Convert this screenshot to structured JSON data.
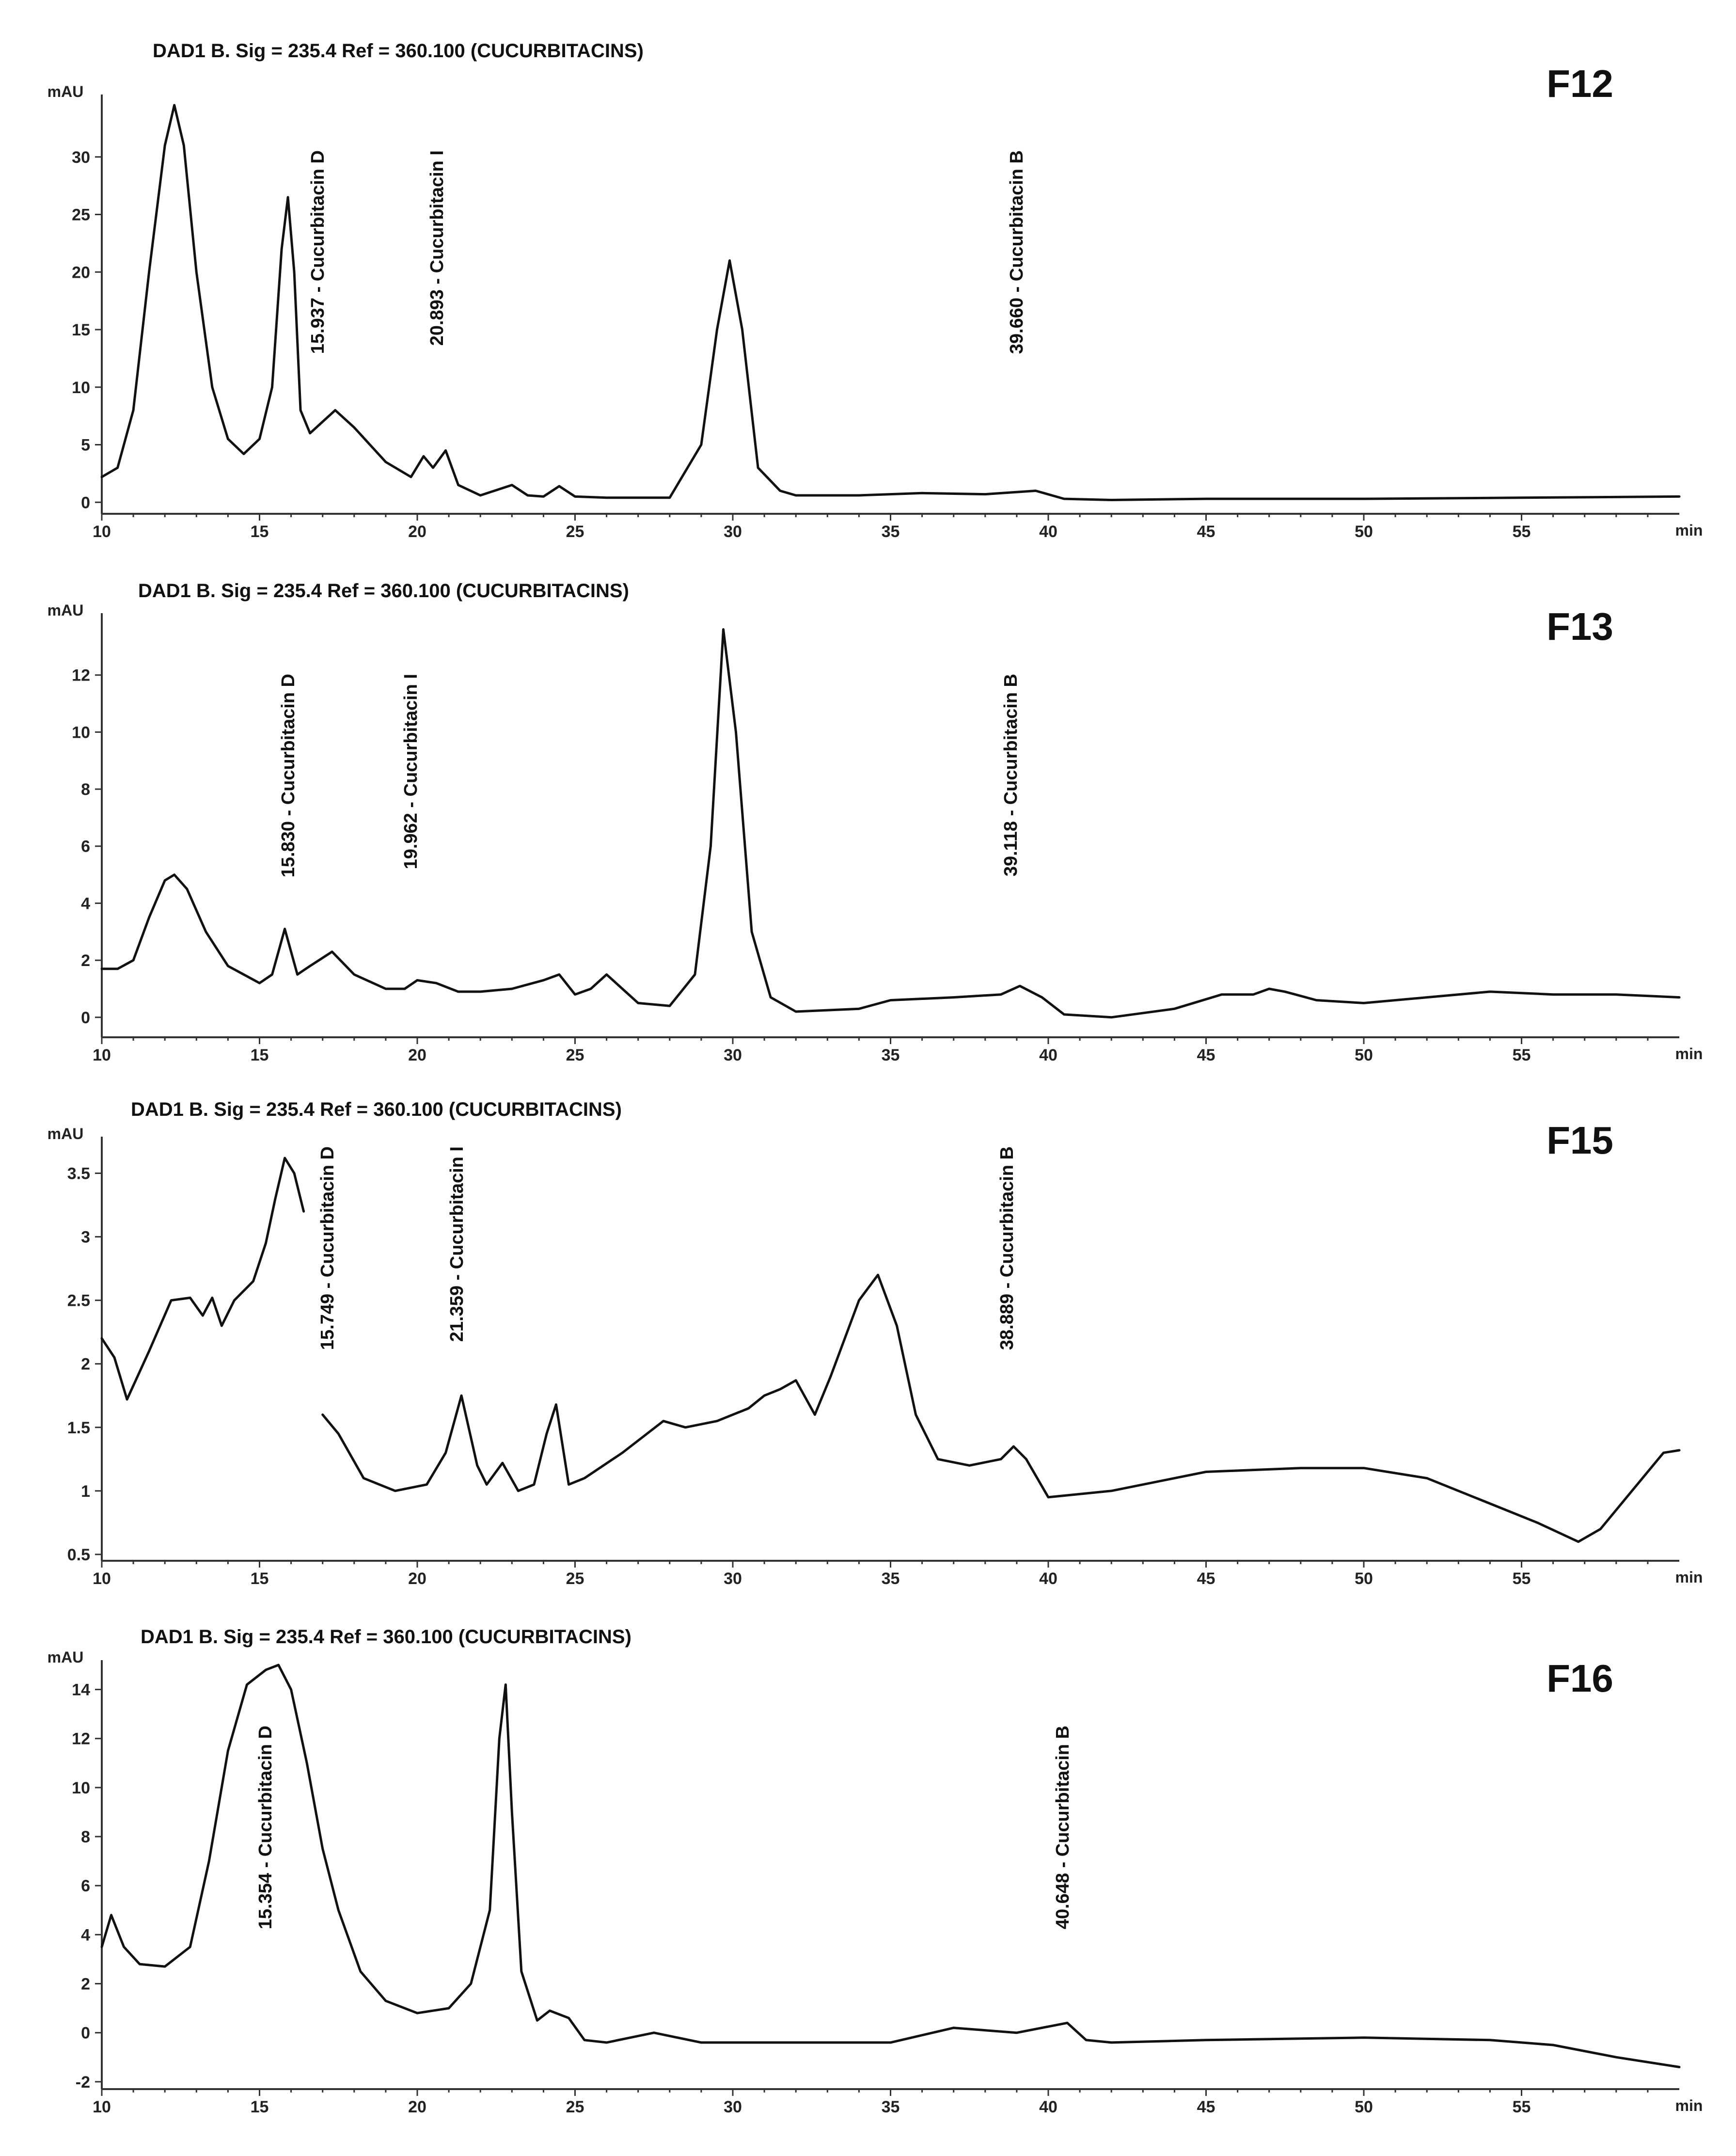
{
  "chart_data": [
    {
      "type": "line",
      "panel": "F12",
      "header": "DAD1 B. Sig = 235.4   Ref = 360.100  (CUCURBITACINS)",
      "ylabel": "mAU",
      "xlabel": "min",
      "xlim": [
        10,
        60
      ],
      "ylim": [
        -1,
        35
      ],
      "x_ticks": [
        10,
        15,
        20,
        25,
        30,
        35,
        40,
        45,
        50,
        55
      ],
      "y_ticks": [
        0,
        5,
        10,
        15,
        20,
        25,
        30
      ],
      "x_tick_labels": [
        "10",
        "15",
        "20",
        "25",
        "30",
        "35",
        "40",
        "45",
        "50",
        "55"
      ],
      "y_tick_labels": [
        "0",
        "5",
        "10",
        "15",
        "20",
        "25",
        "30"
      ],
      "x": [
        10,
        10.5,
        11,
        11.5,
        12,
        12.3,
        12.6,
        13,
        13.5,
        14,
        14.5,
        15,
        15.4,
        15.7,
        15.9,
        16.1,
        16.3,
        16.6,
        17,
        17.4,
        18,
        19,
        19.8,
        20.2,
        20.5,
        20.9,
        21.3,
        22,
        23,
        23.5,
        24,
        24.5,
        25,
        26,
        28,
        29,
        29.5,
        29.9,
        30.3,
        30.8,
        31.5,
        32,
        34,
        36,
        38,
        39.6,
        40.5,
        42,
        45,
        50,
        55,
        60
      ],
      "y": [
        2.2,
        3,
        8,
        20,
        31,
        34.5,
        31,
        20,
        10,
        5.5,
        4.2,
        5.5,
        10,
        22,
        26.5,
        20,
        8,
        6,
        7,
        8,
        6.5,
        3.5,
        2.2,
        4,
        3,
        4.5,
        1.5,
        0.6,
        1.5,
        0.6,
        0.5,
        1.4,
        0.5,
        0.4,
        0.4,
        5,
        15,
        21,
        15,
        3,
        1,
        0.6,
        0.6,
        0.8,
        0.7,
        1.0,
        0.3,
        0.2,
        0.3,
        0.3,
        0.4,
        0.5
      ],
      "label": "F12",
      "peaks": [
        {
          "rt": 15.937,
          "text": "15.937 - Cucurbitacin D"
        },
        {
          "rt": 20.893,
          "text": "20.893 - Cucurbitacin I"
        },
        {
          "rt": 39.66,
          "text": "39.660 - Cucurbitacin B"
        }
      ]
    },
    {
      "type": "line",
      "panel": "F13",
      "header": "DAD1 B. Sig = 235.4   Ref = 360.100  (CUCURBITACINS)",
      "ylabel": "mAU",
      "xlabel": "min",
      "xlim": [
        10,
        60
      ],
      "ylim": [
        -0.7,
        14
      ],
      "x_ticks": [
        10,
        15,
        20,
        25,
        30,
        35,
        40,
        45,
        50,
        55
      ],
      "y_ticks": [
        0,
        2,
        4,
        6,
        8,
        10,
        12
      ],
      "x_tick_labels": [
        "10",
        "15",
        "20",
        "25",
        "30",
        "35",
        "40",
        "45",
        "50",
        "55"
      ],
      "y_tick_labels": [
        "0",
        "2",
        "4",
        "6",
        "8",
        "10",
        "12"
      ],
      "x": [
        10,
        10.5,
        11,
        11.5,
        12,
        12.3,
        12.7,
        13.3,
        14,
        14.5,
        15,
        15.4,
        15.8,
        16.2,
        16.6,
        17.3,
        18,
        19,
        19.6,
        20,
        20.6,
        21.3,
        22,
        23,
        24,
        24.5,
        25,
        25.5,
        26,
        26.5,
        27,
        28,
        28.8,
        29.3,
        29.7,
        30.1,
        30.6,
        31.2,
        32,
        34,
        35,
        37,
        38.5,
        39.1,
        39.8,
        40.5,
        42,
        44,
        45.5,
        46.5,
        47,
        47.5,
        48.5,
        50,
        52,
        54,
        56,
        58,
        60
      ],
      "y": [
        1.7,
        1.7,
        2,
        3.5,
        4.8,
        5,
        4.5,
        3,
        1.8,
        1.5,
        1.2,
        1.5,
        3.1,
        1.5,
        1.8,
        2.3,
        1.5,
        1.0,
        1.0,
        1.3,
        1.2,
        0.9,
        0.9,
        1.0,
        1.3,
        1.5,
        0.8,
        1.0,
        1.5,
        1.0,
        0.5,
        0.4,
        1.5,
        6,
        13.6,
        10,
        3,
        0.7,
        0.2,
        0.3,
        0.6,
        0.7,
        0.8,
        1.1,
        0.7,
        0.1,
        0.0,
        0.3,
        0.8,
        0.8,
        1.0,
        0.9,
        0.6,
        0.5,
        0.7,
        0.9,
        0.8,
        0.8,
        0.7
      ],
      "label": "F13",
      "peaks": [
        {
          "rt": 15.83,
          "text": "15.830 - Cucurbitacin D"
        },
        {
          "rt": 19.962,
          "text": "19.962 - Cucurbitacin I"
        },
        {
          "rt": 39.118,
          "text": "39.118 - Cucurbitacin B"
        }
      ]
    },
    {
      "type": "line",
      "panel": "F15",
      "header": "DAD1 B. Sig = 235.4   Ref = 360.100  (CUCURBITACINS)",
      "ylabel": "mAU",
      "xlabel": "min",
      "xlim": [
        10,
        60
      ],
      "ylim": [
        0.45,
        3.75
      ],
      "x_ticks": [
        10,
        15,
        20,
        25,
        30,
        35,
        40,
        45,
        50,
        55
      ],
      "y_ticks": [
        0.5,
        1,
        1.5,
        2,
        2.5,
        3,
        3.5
      ],
      "x_tick_labels": [
        "10",
        "15",
        "20",
        "25",
        "30",
        "35",
        "40",
        "45",
        "50",
        "55"
      ],
      "y_tick_labels": [
        "0.5",
        "1",
        "1.5",
        "2",
        "2.5",
        "3",
        "3.5"
      ],
      "x": [
        10,
        10.4,
        10.8,
        11.5,
        12.2,
        12.8,
        13.2,
        13.5,
        13.8,
        14.2,
        14.8,
        15.2,
        15.5,
        15.8,
        16.1,
        16.4
      ],
      "y": [
        2.2,
        2.05,
        1.72,
        2.1,
        2.5,
        2.52,
        2.38,
        2.52,
        2.3,
        2.5,
        2.65,
        2.95,
        3.3,
        3.62,
        3.5,
        3.2
      ],
      "x2": [
        17.0,
        17.5,
        18.3,
        19.3,
        20.3,
        20.9,
        21.4,
        21.9,
        22.2,
        22.7,
        23.2,
        23.7,
        24.1,
        24.4,
        24.8,
        25.3,
        26.5,
        27.8,
        28.5,
        29.5,
        30.5,
        31,
        31.5,
        32,
        32.6,
        33.1,
        34,
        34.6,
        35.2,
        35.8,
        36.5,
        37.5,
        38.5,
        38.9,
        39.3,
        40,
        42,
        45,
        48,
        50,
        52,
        54,
        55.5,
        56.8,
        57.5,
        58.5,
        59.5,
        60
      ],
      "y2": [
        1.6,
        1.45,
        1.1,
        1.0,
        1.05,
        1.3,
        1.75,
        1.2,
        1.05,
        1.22,
        1.0,
        1.05,
        1.45,
        1.68,
        1.05,
        1.1,
        1.3,
        1.55,
        1.5,
        1.55,
        1.65,
        1.75,
        1.8,
        1.87,
        1.6,
        1.9,
        2.5,
        2.7,
        2.3,
        1.6,
        1.25,
        1.2,
        1.25,
        1.35,
        1.25,
        0.95,
        1.0,
        1.15,
        1.18,
        1.18,
        1.1,
        0.9,
        0.75,
        0.6,
        0.7,
        1.0,
        1.3,
        1.32
      ],
      "label": "F15",
      "peaks": [
        {
          "rt": 15.749,
          "text": "15.749 - Cucurbitacin D"
        },
        {
          "rt": 21.359,
          "text": "21.359 - Cucurbitacin I"
        },
        {
          "rt": 38.889,
          "text": "38.889 - Cucurbitacin B"
        }
      ]
    },
    {
      "type": "line",
      "panel": "F16",
      "header": "DAD1 B. Sig = 235.4   Ref = 360.100  (CUCURBITACINS)",
      "ylabel": "mAU",
      "xlabel": "min",
      "xlim": [
        10,
        60
      ],
      "ylim": [
        -2.3,
        15
      ],
      "x_ticks": [
        10,
        15,
        20,
        25,
        30,
        35,
        40,
        45,
        50,
        55
      ],
      "y_ticks": [
        -2,
        0,
        2,
        4,
        6,
        8,
        10,
        12,
        14
      ],
      "x_tick_labels": [
        "10",
        "15",
        "20",
        "25",
        "30",
        "35",
        "40",
        "45",
        "50",
        "55"
      ],
      "y_tick_labels": [
        "-2",
        "0",
        "2",
        "4",
        "6",
        "8",
        "10",
        "12",
        "14"
      ],
      "x": [
        10,
        10.3,
        10.7,
        11.2,
        12,
        12.8,
        13.4,
        14,
        14.6,
        15.2,
        15.6,
        16,
        16.5,
        17,
        17.5,
        18.2,
        19,
        20,
        21,
        21.7,
        22.3,
        22.6,
        22.8,
        23.0,
        23.3,
        23.8,
        24.2,
        24.8,
        25.3,
        26,
        27.5,
        29,
        32,
        35,
        37,
        39,
        40.6,
        41.2,
        42,
        45,
        50,
        54,
        56,
        58,
        60
      ],
      "y": [
        3.5,
        4.8,
        3.5,
        2.8,
        2.7,
        3.5,
        7,
        11.5,
        14.2,
        14.8,
        15,
        14,
        11,
        7.5,
        5,
        2.5,
        1.3,
        0.8,
        1.0,
        2.0,
        5,
        12,
        14.2,
        9,
        2.5,
        0.5,
        0.9,
        0.6,
        -0.3,
        -0.4,
        0.0,
        -0.4,
        -0.4,
        -0.4,
        0.2,
        0.0,
        0.4,
        -0.3,
        -0.4,
        -0.3,
        -0.2,
        -0.3,
        -0.5,
        -1.0,
        -1.4
      ],
      "label": "F16",
      "peaks": [
        {
          "rt": 15.354,
          "text": "15.354 - Cucurbitacin D"
        },
        {
          "rt": 40.648,
          "text": "40.648 - Cucurbitacin B"
        }
      ]
    }
  ]
}
